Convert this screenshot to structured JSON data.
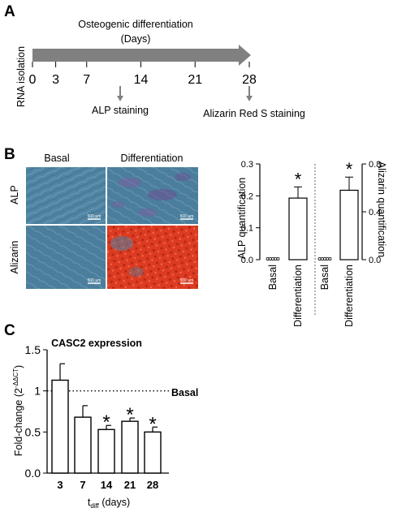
{
  "panel_a": {
    "label": "A",
    "title_line1": "Osteogenic differentiation",
    "title_line2": "(Days)",
    "side_label": "RNA isolation",
    "days": [
      "0",
      "3",
      "7",
      "14",
      "21",
      "28"
    ],
    "alp_label": "ALP staining",
    "alizarin_label": "Alizarin Red S staining"
  },
  "panel_b": {
    "label": "B",
    "col_basal": "Basal",
    "col_diff": "Differentiation",
    "row_alp": "ALP",
    "row_alizarin": "Alizarin",
    "scale_bar": "500 µm",
    "star": "*",
    "colors": {
      "micro_blue": "#4c7f9c",
      "alizarin_red": "#d93a25",
      "alp_purple": "#7a5fa0"
    }
  },
  "panel_c": {
    "label": "C",
    "star": "*",
    "basal_label": "Basal"
  },
  "chart_data": [
    {
      "type": "bar",
      "panel": "B",
      "categories": [
        "Basal",
        "Differentiation"
      ],
      "groups": [
        {
          "ylabel": "ALP quantification",
          "ylim": [
            0,
            0.3
          ],
          "yticks": [
            "0.0",
            "0.1",
            "0.2",
            "0.3"
          ],
          "values": [
            0.0,
            0.193
          ],
          "errors": [
            0.002,
            0.035
          ]
        },
        {
          "ylabel": "Alizarin quantification",
          "ylim": [
            0,
            0.8
          ],
          "yticks": [
            "0.0",
            "0.4",
            "0.8"
          ],
          "values": [
            0.0,
            0.58
          ],
          "errors": [
            0.002,
            0.11
          ]
        }
      ]
    },
    {
      "type": "bar",
      "panel": "C",
      "title": "CASC2 expression",
      "ylabel": "Fold-change (2",
      "ylabel_sup": "-ΔΔCT",
      "ylabel_end": ")",
      "xlabel": "t",
      "xlabel_sub": "diff",
      "xlabel_end": " (days)",
      "categories": [
        "3",
        "7",
        "14",
        "21",
        "28"
      ],
      "values": [
        1.13,
        0.68,
        0.53,
        0.63,
        0.5
      ],
      "errors": [
        0.2,
        0.14,
        0.05,
        0.04,
        0.06
      ],
      "significant": [
        false,
        false,
        true,
        true,
        true
      ],
      "ylim": [
        0,
        1.5
      ],
      "yticks": [
        "0.0",
        "0.5",
        "1",
        "1.5"
      ],
      "reference_line": 1
    }
  ]
}
